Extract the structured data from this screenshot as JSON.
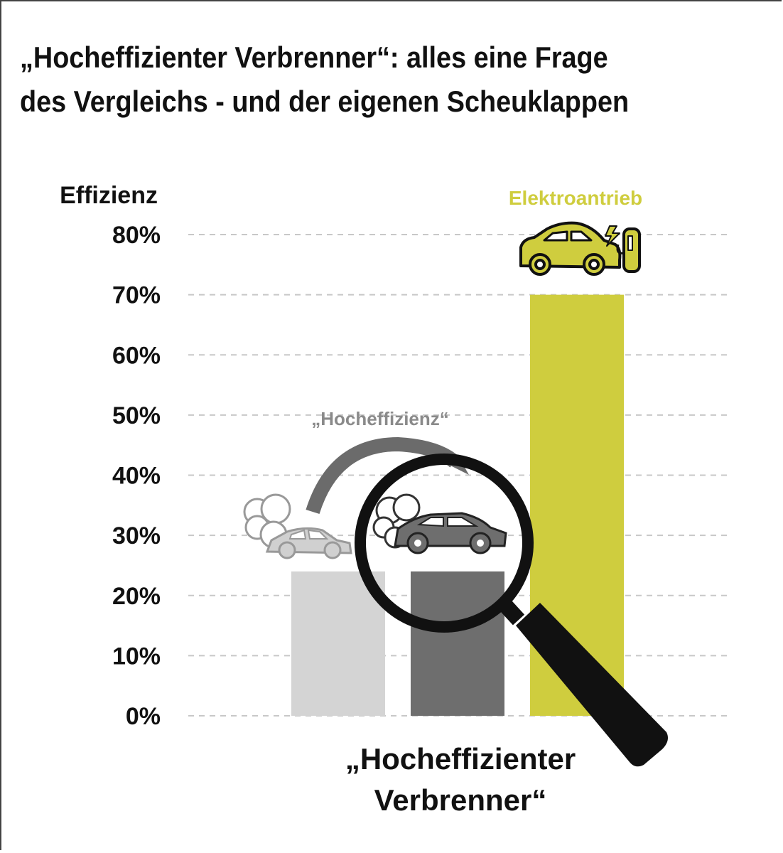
{
  "title_line1": "„Hocheffizienter Verbrenner“: alles eine Frage",
  "title_line2": "des Vergleichs - und der eigenen Scheuklappen",
  "colors": {
    "light_bar": "#d4d4d4",
    "dark_bar": "#6e6e6e",
    "electric": "#cfcd3e",
    "grid": "#c8c8c8",
    "text": "#111111",
    "annotation": "#8a8a8a"
  },
  "chart_data": {
    "type": "bar",
    "ylabel": "Effizienz",
    "ylim": [
      0,
      80
    ],
    "yticks": [
      "0%",
      "10%",
      "20%",
      "30%",
      "40%",
      "50%",
      "60%",
      "70%",
      "80%"
    ],
    "ytick_values": [
      0,
      10,
      20,
      30,
      40,
      50,
      60,
      70,
      80
    ],
    "grid": "horizontal dashed",
    "bars": [
      {
        "value": 24,
        "color": "#d4d4d4"
      },
      {
        "value": 24,
        "color": "#6e6e6e"
      },
      {
        "value": 70,
        "color": "#cfcd3e"
      }
    ],
    "annotations": {
      "electric_label": "Elektroantrieb",
      "hocheffizienz": "„Hocheffizienz“",
      "bottom_line1": "„Hocheffizienter",
      "bottom_line2": "Verbrenner“"
    },
    "icons": [
      "car-exhaust-light-icon",
      "car-exhaust-dark-icon",
      "electric-car-charging-icon",
      "magnifying-glass-icon",
      "curved-arrow-icon"
    ]
  }
}
